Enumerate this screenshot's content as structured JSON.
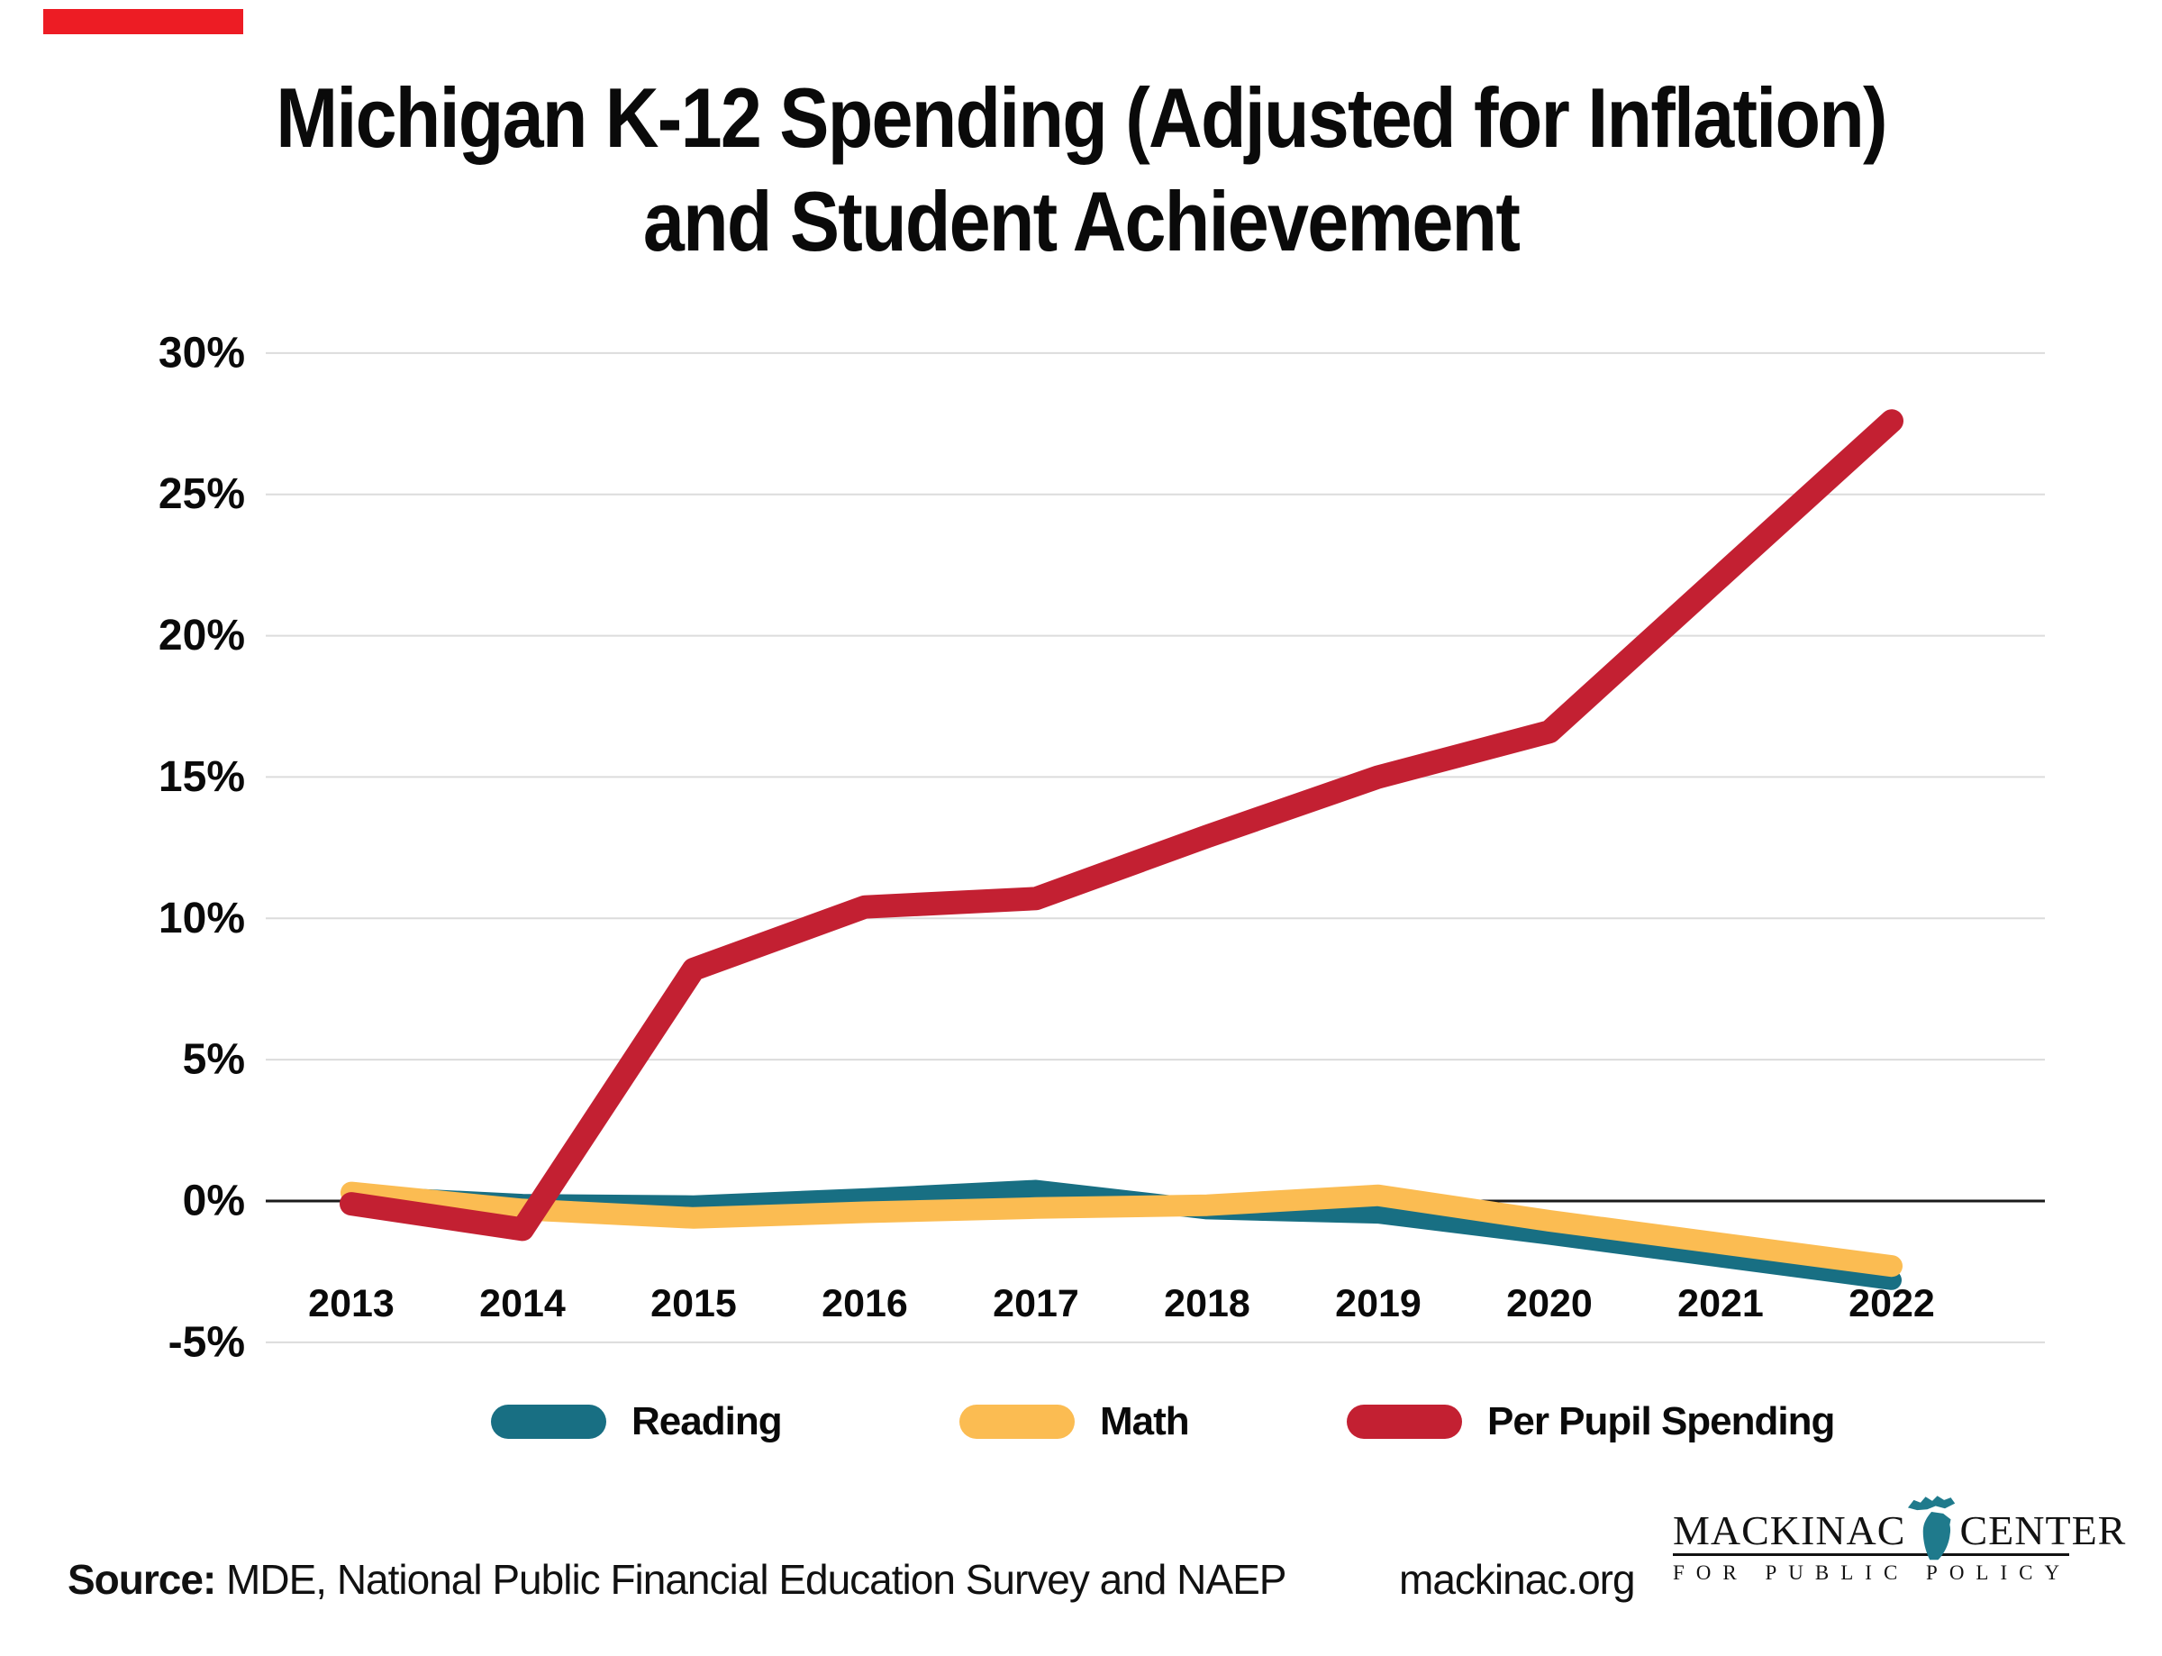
{
  "page": {
    "title_line1": "Michigan K-12 Spending (Adjusted for Inflation)",
    "title_line2": "and Student Achievement",
    "corner_mark_color": "#ED1C24",
    "background_color": "#FFFFFF"
  },
  "chart_data": {
    "type": "line",
    "x": [
      2013,
      2014,
      2015,
      2016,
      2017,
      2018,
      2019,
      2020,
      2021,
      2022
    ],
    "series": [
      {
        "name": "Reading",
        "color": "#186F83",
        "values": [
          0.2,
          -0.1,
          -0.15,
          0.1,
          0.4,
          -0.3,
          -0.45,
          -1.2,
          -2.0,
          -2.8
        ]
      },
      {
        "name": "Math",
        "color": "#FBBC52",
        "values": [
          0.3,
          -0.3,
          -0.6,
          -0.4,
          -0.25,
          -0.15,
          0.2,
          -0.7,
          -1.5,
          -2.3
        ]
      },
      {
        "name": "Per Pupil Spending",
        "color": "#C32032",
        "values": [
          -0.1,
          -1.0,
          8.2,
          10.4,
          10.7,
          12.9,
          15.0,
          16.6,
          22.1,
          27.6
        ]
      }
    ],
    "ylim": [
      -5,
      30
    ],
    "ytick_values": [
      30,
      25,
      20,
      15,
      10,
      5,
      0,
      -5
    ],
    "ytick_labels": [
      "30%",
      "25%",
      "20%",
      "15%",
      "10%",
      "5%",
      "0%",
      "-5%"
    ],
    "grid": true,
    "gridline_color": "#DCDCDC",
    "zero_line_color": "#1A1A1A",
    "legend_position": "bottom",
    "title": "Michigan K-12 Spending (Adjusted for Inflation) and Student Achievement"
  },
  "footer": {
    "source_label": "Source:",
    "source_text": " MDE, National Public Financial Education Survey and NAEP",
    "website": "mackinac.org"
  },
  "logo": {
    "word_left": "MACKINAC",
    "word_right": "CENTER",
    "subtitle": "FOR PUBLIC POLICY",
    "icon_color": "#1F7A8C"
  }
}
